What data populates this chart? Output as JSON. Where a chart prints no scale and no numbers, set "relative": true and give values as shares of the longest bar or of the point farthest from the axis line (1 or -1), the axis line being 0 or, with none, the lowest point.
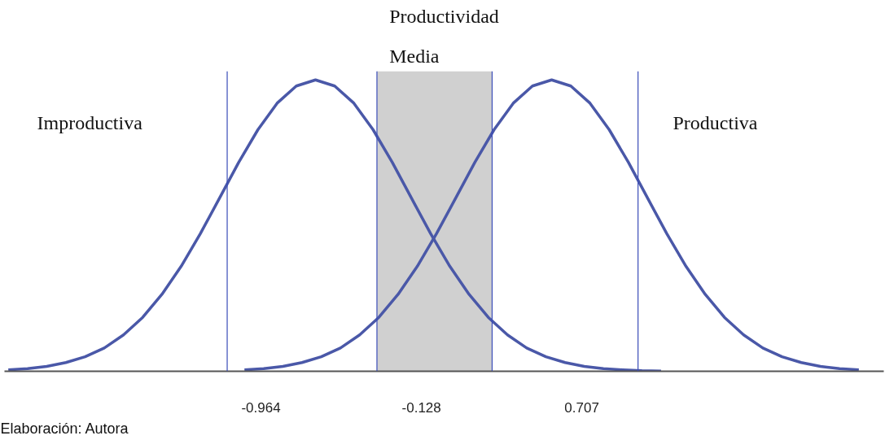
{
  "chart_data": {
    "type": "line",
    "relative": true,
    "xlim": [
      -2.3,
      2.28
    ],
    "xticks": [
      -0.964,
      -0.128,
      0.707
    ],
    "grid": false,
    "marker": "none",
    "line_style": "solid",
    "tick_labels": "x",
    "series": [
      {
        "color": "#4a58a8",
        "x": [
          -2.28,
          -2.18,
          -2.08,
          -1.98,
          -1.88,
          -1.78,
          -1.68,
          -1.58,
          -1.48,
          -1.38,
          -1.28,
          -1.18,
          -1.08,
          -0.98,
          -0.88,
          -0.78,
          -0.68,
          -0.58,
          -0.48,
          -0.38,
          -0.28,
          -0.18,
          -0.08,
          0.02,
          0.12,
          0.22,
          0.32,
          0.42,
          0.52,
          0.62,
          0.72,
          0.82,
          0.92,
          1.02,
          1.12
        ],
        "values": [
          0.005,
          0.009,
          0.017,
          0.03,
          0.05,
          0.08,
          0.125,
          0.185,
          0.264,
          0.36,
          0.472,
          0.594,
          0.717,
          0.829,
          0.92,
          0.979,
          1,
          0.979,
          0.92,
          0.829,
          0.717,
          0.594,
          0.472,
          0.36,
          0.264,
          0.185,
          0.125,
          0.08,
          0.05,
          0.03,
          0.017,
          0.009,
          0.005,
          0.002,
          0.001
        ]
      },
      {
        "color": "#4a58a8",
        "x": [
          -1.05,
          -0.95,
          -0.85,
          -0.75,
          -0.65,
          -0.55,
          -0.45,
          -0.35,
          -0.25,
          -0.15,
          -0.05,
          0.05,
          0.15,
          0.25,
          0.35,
          0.45,
          0.55,
          0.65,
          0.75,
          0.85,
          0.95,
          1.05,
          1.15,
          1.25,
          1.35,
          1.45,
          1.55,
          1.65,
          1.75,
          1.85,
          1.95,
          2.05,
          2.15
        ],
        "values": [
          0.005,
          0.009,
          0.017,
          0.03,
          0.05,
          0.08,
          0.125,
          0.185,
          0.264,
          0.36,
          0.472,
          0.594,
          0.717,
          0.829,
          0.92,
          0.979,
          1,
          0.979,
          0.92,
          0.829,
          0.717,
          0.594,
          0.472,
          0.36,
          0.264,
          0.185,
          0.125,
          0.08,
          0.05,
          0.03,
          0.017,
          0.009,
          0.005
        ]
      }
    ],
    "ref_lines": [
      {
        "axis": "x",
        "value": -1.14,
        "color": "#3a4cb8"
      },
      {
        "axis": "x",
        "value": -0.36,
        "color": "#3a4cb8"
      },
      {
        "axis": "x",
        "value": 0.24,
        "color": "#3a4cb8"
      },
      {
        "axis": "x",
        "value": 1.0,
        "color": "#3a4cb8"
      }
    ],
    "bands": [
      {
        "axis": "x",
        "from": -0.36,
        "to": 0.24,
        "color": "#d0d0d0"
      }
    ],
    "annotations": [
      "Productividad\nMedia",
      "Improductiva",
      "Productiva",
      "Elaboración: Autora"
    ]
  }
}
